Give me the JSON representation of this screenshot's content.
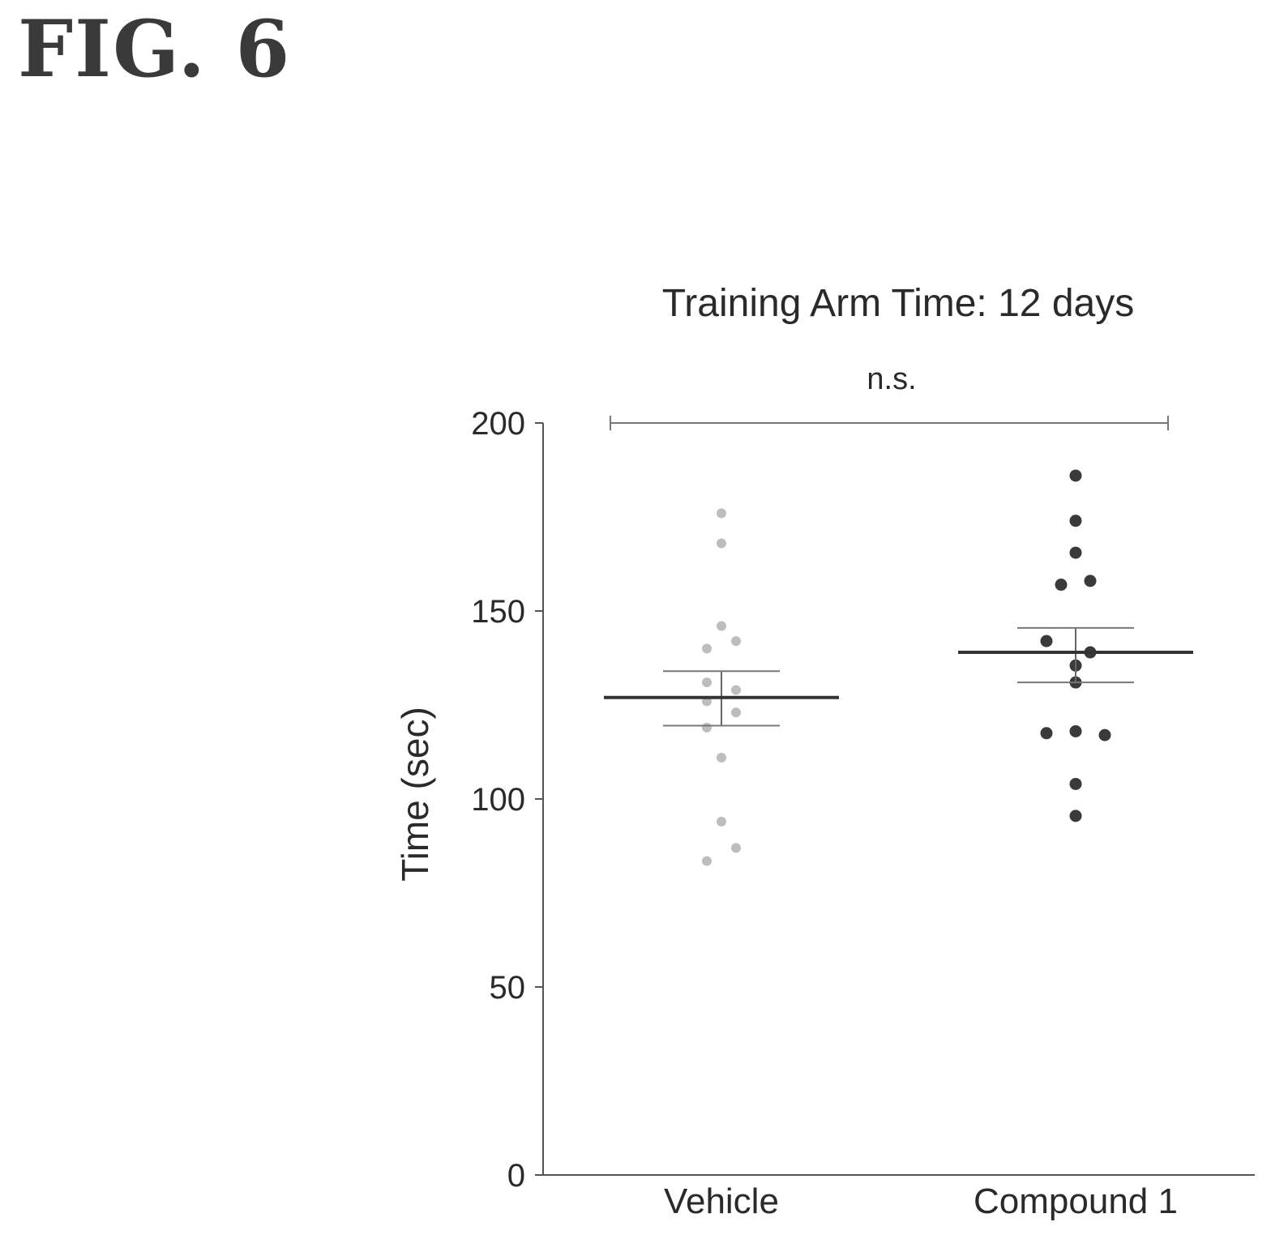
{
  "figure_label": "FIG. 6",
  "chart_data": {
    "type": "scatter",
    "title": "Training Arm Time: 12 days",
    "ylabel": "Time (sec)",
    "xlabel": "",
    "categories": [
      "Vehicle",
      "Compound 1"
    ],
    "ylim": [
      0,
      200
    ],
    "yticks": [
      0,
      50,
      100,
      150,
      200
    ],
    "grid": false,
    "significance": {
      "label": "n.s.",
      "between": [
        "Vehicle",
        "Compound 1"
      ]
    },
    "colors": {
      "Vehicle": "#bdbdbd",
      "Compound 1": "#3a3a3a",
      "axis": "#555555",
      "mean": "#333333"
    },
    "groups": [
      {
        "category": "Vehicle",
        "mean": 127,
        "sem": [
          119.5,
          134
        ],
        "points": [
          {
            "offset": 0,
            "y": 176
          },
          {
            "offset": 0,
            "y": 168
          },
          {
            "offset": 0,
            "y": 146
          },
          {
            "offset": -1,
            "y": 140
          },
          {
            "offset": 1,
            "y": 142
          },
          {
            "offset": -1,
            "y": 131
          },
          {
            "offset": 1,
            "y": 129
          },
          {
            "offset": -1,
            "y": 126
          },
          {
            "offset": 1,
            "y": 123
          },
          {
            "offset": -1,
            "y": 119
          },
          {
            "offset": 0,
            "y": 111
          },
          {
            "offset": 0,
            "y": 94
          },
          {
            "offset": 1,
            "y": 87
          },
          {
            "offset": -1,
            "y": 83.5
          }
        ]
      },
      {
        "category": "Compound 1",
        "mean": 139,
        "sem": [
          131,
          145.5
        ],
        "points": [
          {
            "offset": 0,
            "y": 186
          },
          {
            "offset": 0,
            "y": 174
          },
          {
            "offset": 0,
            "y": 165.5
          },
          {
            "offset": -1,
            "y": 157
          },
          {
            "offset": 1,
            "y": 158
          },
          {
            "offset": -2,
            "y": 142
          },
          {
            "offset": 1,
            "y": 139
          },
          {
            "offset": 0,
            "y": 135.5
          },
          {
            "offset": 0,
            "y": 131
          },
          {
            "offset": -2,
            "y": 117.5
          },
          {
            "offset": 0,
            "y": 118
          },
          {
            "offset": 2,
            "y": 117
          },
          {
            "offset": 0,
            "y": 104
          },
          {
            "offset": 0,
            "y": 95.5
          }
        ]
      }
    ]
  }
}
